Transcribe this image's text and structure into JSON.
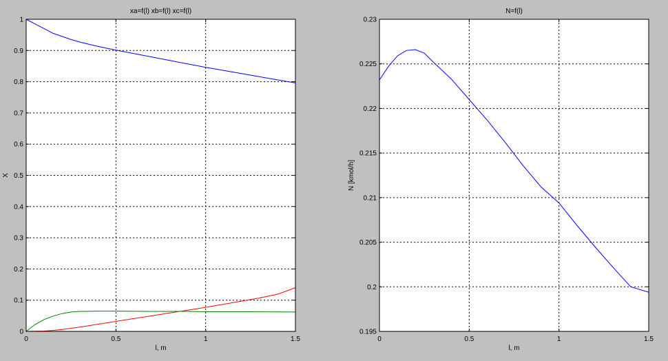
{
  "chart_data": [
    {
      "type": "line",
      "title": "xa=f(l) xb=f(l) xc=f(l)",
      "xlabel": "l, m",
      "ylabel": "X",
      "xlim": [
        0,
        1.5
      ],
      "ylim": [
        0,
        1
      ],
      "grid": true,
      "x_ticks": [
        "0",
        "0.5",
        "1",
        "1.5"
      ],
      "y_ticks": [
        "0",
        "0.1",
        "0.2",
        "0.3",
        "0.4",
        "0.5",
        "0.6",
        "0.7",
        "0.8",
        "0.9",
        "1"
      ],
      "series": [
        {
          "color": "#0000ff",
          "x": [
            0,
            0.05,
            0.1,
            0.15,
            0.2,
            0.25,
            0.3,
            0.4,
            0.5,
            0.6,
            0.7,
            0.8,
            0.9,
            1.0,
            1.1,
            1.2,
            1.3,
            1.4,
            1.5
          ],
          "y": [
            1.0,
            0.985,
            0.97,
            0.955,
            0.945,
            0.935,
            0.927,
            0.913,
            0.901,
            0.89,
            0.879,
            0.868,
            0.857,
            0.846,
            0.836,
            0.826,
            0.816,
            0.806,
            0.796
          ]
        },
        {
          "color": "#ff0000",
          "x": [
            0,
            0.1,
            0.15,
            0.2,
            0.3,
            0.4,
            0.5,
            0.6,
            0.7,
            0.8,
            0.9,
            1.0,
            1.1,
            1.2,
            1.3,
            1.4,
            1.5
          ],
          "y": [
            0,
            0.001,
            0.003,
            0.006,
            0.014,
            0.023,
            0.032,
            0.041,
            0.05,
            0.059,
            0.068,
            0.077,
            0.087,
            0.097,
            0.107,
            0.119,
            0.14
          ]
        },
        {
          "color": "#008000",
          "x": [
            0,
            0.05,
            0.1,
            0.15,
            0.2,
            0.25,
            0.3,
            0.4,
            0.5,
            0.7,
            0.9,
            1.0,
            1.2,
            1.5
          ],
          "y": [
            0,
            0.022,
            0.038,
            0.049,
            0.057,
            0.062,
            0.064,
            0.065,
            0.065,
            0.064,
            0.064,
            0.063,
            0.063,
            0.062
          ]
        }
      ]
    },
    {
      "type": "line",
      "title": "N=f(l)",
      "xlabel": "l, m",
      "ylabel": "N [kmol/h]",
      "xlim": [
        0,
        1.5
      ],
      "ylim": [
        0.195,
        0.23
      ],
      "grid": true,
      "x_ticks": [
        "0",
        "0.5",
        "1",
        "1.5"
      ],
      "y_ticks": [
        "0.195",
        "0.2",
        "0.205",
        "0.21",
        "0.215",
        "0.22",
        "0.225",
        "0.23"
      ],
      "series": [
        {
          "color": "#0000ff",
          "x": [
            0,
            0.05,
            0.1,
            0.15,
            0.2,
            0.25,
            0.3,
            0.4,
            0.5,
            0.6,
            0.7,
            0.8,
            0.9,
            1.0,
            1.1,
            1.2,
            1.3,
            1.4,
            1.5
          ],
          "y": [
            0.2232,
            0.2247,
            0.2259,
            0.2265,
            0.2266,
            0.2262,
            0.2252,
            0.2233,
            0.221,
            0.2187,
            0.2162,
            0.2136,
            0.2112,
            0.2094,
            0.2069,
            0.2045,
            0.2022,
            0.2,
            0.1994
          ]
        }
      ]
    }
  ]
}
